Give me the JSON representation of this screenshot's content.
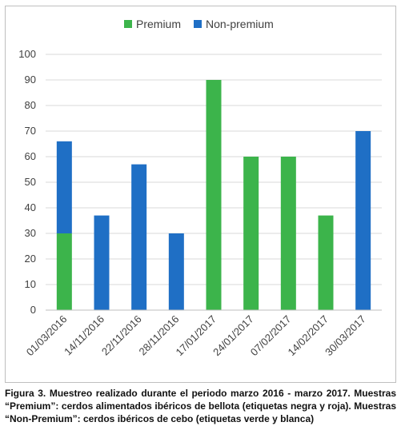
{
  "chart_data": {
    "type": "bar",
    "stacked": true,
    "categories": [
      "01/03/2016",
      "14/11/2016",
      "22/11/2016",
      "28/11/2016",
      "17/01/2017",
      "24/01/2017",
      "07/02/2017",
      "14/02/2017",
      "30/03/2017"
    ],
    "series": [
      {
        "name": "Premium",
        "color": "#3cb44b",
        "values": [
          30,
          0,
          0,
          0,
          90,
          60,
          60,
          37,
          0
        ]
      },
      {
        "name": "Non-premium",
        "color": "#1f6fc5",
        "values": [
          36,
          37,
          57,
          30,
          0,
          0,
          0,
          0,
          70
        ]
      }
    ],
    "yticks": [
      "0",
      "10",
      "20",
      "30",
      "40",
      "50",
      "60",
      "70",
      "80",
      "90",
      "100"
    ],
    "ylim": [
      0,
      100
    ],
    "grid": true,
    "legend": "top-center"
  },
  "caption": "Figura 3. Muestreo realizado durante el periodo marzo 2016 - marzo 2017. Muestras “Premium”: cerdos alimentados ibéricos de bellota (etiquetas negra y roja). Muestras “Non-Premium”: cerdos ibéricos de cebo (etiquetas verde y blanca)"
}
